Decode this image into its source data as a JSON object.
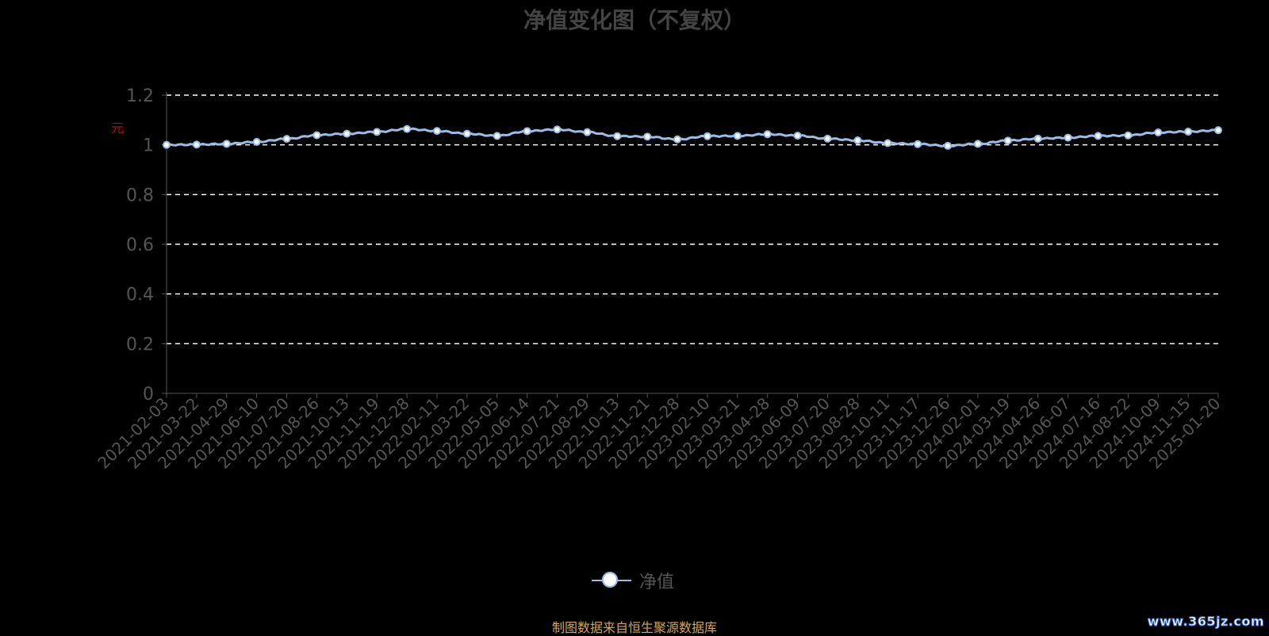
{
  "title": "净值变化图（不复权）",
  "unit_label": "元",
  "legend_label": "净值",
  "source_note": "制图数据来自恒生聚源数据库",
  "watermark": "www.365jz.com",
  "colors": {
    "line": "#9bbce6",
    "marker_fill": "#ffffff",
    "grid": "#ffffff",
    "axis": "#555555"
  },
  "chart_data": {
    "type": "line",
    "title": "净值变化图（不复权）",
    "ylabel": "元",
    "ylim": [
      0,
      1.2
    ],
    "yticks": [
      0,
      0.2,
      0.4,
      0.6,
      0.8,
      1,
      1.2
    ],
    "grid": true,
    "legend_position": "bottom",
    "categories": [
      "2021-02-03",
      "2021-03-22",
      "2021-04-29",
      "2021-06-10",
      "2021-07-20",
      "2021-08-26",
      "2021-10-13",
      "2021-11-19",
      "2021-12-28",
      "2022-02-11",
      "2022-03-22",
      "2022-05-05",
      "2022-06-14",
      "2022-07-21",
      "2022-08-29",
      "2022-10-13",
      "2022-11-21",
      "2022-12-28",
      "2023-02-10",
      "2023-03-21",
      "2023-04-28",
      "2023-06-09",
      "2023-07-20",
      "2023-08-28",
      "2023-10-11",
      "2023-11-17",
      "2023-12-26",
      "2024-02-01",
      "2024-03-19",
      "2024-04-26",
      "2024-06-07",
      "2024-07-16",
      "2024-08-22",
      "2024-10-09",
      "2024-11-15",
      "2025-01-20"
    ],
    "series": [
      {
        "name": "净值",
        "values": [
          1.0,
          1.001,
          1.004,
          1.012,
          1.024,
          1.039,
          1.045,
          1.052,
          1.064,
          1.056,
          1.045,
          1.036,
          1.055,
          1.062,
          1.051,
          1.035,
          1.033,
          1.022,
          1.035,
          1.036,
          1.043,
          1.037,
          1.025,
          1.018,
          1.007,
          1.003,
          0.996,
          1.004,
          1.017,
          1.025,
          1.029,
          1.036,
          1.038,
          1.05,
          1.053,
          1.059
        ]
      }
    ]
  }
}
